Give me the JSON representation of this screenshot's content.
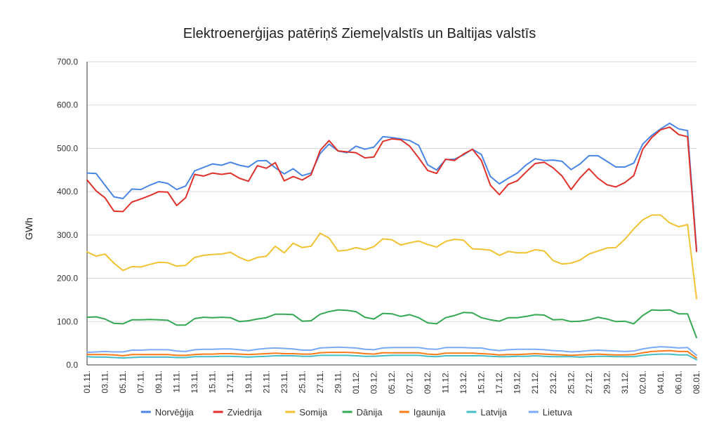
{
  "chart_data": {
    "type": "line",
    "title": "Elektroenerģijas patēriņš Ziemeļvalstīs un Baltijas valstīs",
    "xlabel": "",
    "ylabel": "GWh",
    "ylim": [
      0,
      700
    ],
    "yticks": [
      "0.0",
      "100.0",
      "200.0",
      "300.0",
      "400.0",
      "500.0",
      "600.0",
      "700.0"
    ],
    "grid": true,
    "legend_position": "bottom",
    "x": [
      "01.11.",
      "02.11.",
      "03.11.",
      "04.11.",
      "05.11.",
      "06.11.",
      "07.11.",
      "08.11.",
      "09.11.",
      "10.11.",
      "11.11.",
      "12.11.",
      "13.11.",
      "14.11.",
      "15.11.",
      "16.11.",
      "17.11.",
      "18.11.",
      "19.11.",
      "20.11.",
      "21.11.",
      "22.11.",
      "23.11.",
      "24.11.",
      "25.11.",
      "26.11.",
      "27.11.",
      "28.11.",
      "29.11.",
      "30.11.",
      "01.12.",
      "02.12.",
      "03.12.",
      "04.12.",
      "05.12.",
      "06.12.",
      "07.12.",
      "08.12.",
      "09.12.",
      "10.12.",
      "11.12.",
      "12.12.",
      "13.12.",
      "14.12.",
      "15.12.",
      "16.12.",
      "17.12.",
      "18.12.",
      "19.12.",
      "20.12.",
      "21.12.",
      "22.12.",
      "23.12.",
      "24.12.",
      "25.12.",
      "26.12.",
      "27.12.",
      "28.12.",
      "29.12.",
      "30.12.",
      "31.12.",
      "01.01.",
      "02.01.",
      "03.01.",
      "04.01.",
      "05.01.",
      "06.01.",
      "07.01.",
      "08.01."
    ],
    "x_tick_labels_shown": [
      "01.11.",
      "03.11.",
      "05.11.",
      "07.11.",
      "09.11.",
      "11.11.",
      "13.11.",
      "15.11.",
      "17.11.",
      "19.11.",
      "21.11.",
      "23.11.",
      "25.11.",
      "27.11.",
      "29.11.",
      "01.12.",
      "03.12.",
      "05.12.",
      "07.12.",
      "09.12.",
      "11.12.",
      "13.12.",
      "15.12.",
      "17.12.",
      "19.12.",
      "21.12.",
      "23.12.",
      "25.12.",
      "27.12.",
      "29.12.",
      "31.12.",
      "02.01.",
      "04.01.",
      "06.01.",
      "08.01."
    ],
    "series": [
      {
        "name": "Norvēģija",
        "color": "#4a86e8",
        "values": [
          443,
          442,
          415,
          388,
          384,
          406,
          405,
          415,
          423,
          419,
          405,
          413,
          448,
          456,
          464,
          461,
          468,
          461,
          457,
          471,
          472,
          455,
          441,
          453,
          437,
          443,
          488,
          510,
          494,
          490,
          505,
          498,
          503,
          527,
          525,
          522,
          518,
          507,
          462,
          450,
          474,
          475,
          485,
          498,
          486,
          435,
          418,
          431,
          443,
          462,
          476,
          472,
          473,
          470,
          451,
          464,
          483,
          483,
          470,
          457,
          457,
          466,
          510,
          530,
          545,
          558,
          545,
          541,
          268
        ]
      },
      {
        "name": "Zviedrija",
        "color": "#e0302a",
        "values": [
          427,
          402,
          386,
          355,
          354,
          376,
          383,
          391,
          400,
          399,
          368,
          386,
          440,
          436,
          443,
          440,
          443,
          431,
          424,
          460,
          454,
          467,
          425,
          435,
          427,
          439,
          495,
          518,
          494,
          492,
          490,
          478,
          480,
          516,
          522,
          520,
          505,
          478,
          449,
          442,
          475,
          472,
          487,
          498,
          472,
          415,
          393,
          417,
          425,
          446,
          465,
          468,
          455,
          436,
          405,
          432,
          453,
          431,
          416,
          411,
          421,
          437,
          498,
          525,
          543,
          549,
          532,
          527,
          262
        ]
      },
      {
        "name": "Somija",
        "color": "#f1c232",
        "values": [
          261,
          251,
          256,
          235,
          218,
          227,
          226,
          232,
          237,
          236,
          228,
          230,
          248,
          253,
          255,
          256,
          260,
          248,
          240,
          248,
          251,
          274,
          259,
          281,
          271,
          274,
          304,
          293,
          263,
          265,
          271,
          266,
          273,
          291,
          289,
          277,
          282,
          286,
          278,
          272,
          285,
          290,
          288,
          268,
          267,
          265,
          253,
          262,
          259,
          259,
          266,
          263,
          241,
          233,
          235,
          242,
          256,
          263,
          270,
          271,
          290,
          314,
          335,
          346,
          346,
          328,
          319,
          324,
          153
        ]
      },
      {
        "name": "Dānija",
        "color": "#34a853",
        "values": [
          110,
          111,
          106,
          96,
          95,
          104,
          104,
          105,
          104,
          103,
          92,
          92,
          107,
          110,
          109,
          110,
          109,
          100,
          102,
          106,
          109,
          117,
          117,
          116,
          101,
          102,
          117,
          123,
          127,
          126,
          123,
          110,
          106,
          119,
          118,
          112,
          116,
          109,
          97,
          95,
          109,
          114,
          121,
          120,
          109,
          104,
          101,
          109,
          109,
          112,
          116,
          115,
          104,
          105,
          100,
          101,
          104,
          110,
          106,
          100,
          101,
          95,
          114,
          127,
          126,
          127,
          118,
          118,
          63
        ]
      },
      {
        "name": "Igaunija",
        "color": "#fa7b17",
        "values": [
          24,
          24,
          24,
          23,
          21,
          24,
          24,
          24,
          24,
          24,
          22,
          22,
          24,
          25,
          25,
          26,
          26,
          25,
          24,
          25,
          26,
          27,
          26,
          26,
          25,
          25,
          28,
          29,
          29,
          29,
          28,
          26,
          25,
          28,
          28,
          28,
          28,
          28,
          25,
          24,
          27,
          27,
          27,
          27,
          26,
          25,
          23,
          24,
          24,
          25,
          26,
          25,
          24,
          23,
          22,
          23,
          24,
          25,
          24,
          23,
          23,
          24,
          28,
          31,
          32,
          33,
          31,
          31,
          16
        ]
      },
      {
        "name": "Latvija",
        "color": "#46bdc6",
        "values": [
          19,
          18,
          18,
          17,
          16,
          17,
          18,
          18,
          18,
          18,
          17,
          17,
          19,
          19,
          19,
          20,
          20,
          19,
          18,
          19,
          20,
          21,
          21,
          21,
          20,
          20,
          22,
          22,
          22,
          22,
          21,
          20,
          20,
          21,
          22,
          22,
          22,
          22,
          20,
          19,
          21,
          21,
          21,
          21,
          21,
          20,
          19,
          19,
          20,
          20,
          21,
          20,
          19,
          19,
          19,
          18,
          19,
          20,
          20,
          19,
          19,
          19,
          22,
          24,
          25,
          25,
          23,
          23,
          12
        ]
      },
      {
        "name": "Lietuva",
        "color": "#7baaf7",
        "values": [
          29,
          30,
          31,
          30,
          30,
          34,
          34,
          35,
          35,
          35,
          32,
          31,
          35,
          36,
          36,
          37,
          37,
          35,
          33,
          36,
          38,
          39,
          38,
          37,
          34,
          34,
          39,
          40,
          41,
          40,
          39,
          36,
          35,
          39,
          40,
          40,
          40,
          40,
          37,
          36,
          40,
          40,
          40,
          39,
          39,
          35,
          33,
          35,
          36,
          36,
          36,
          35,
          33,
          32,
          30,
          31,
          33,
          34,
          33,
          32,
          31,
          32,
          37,
          40,
          42,
          41,
          39,
          40,
          22
        ]
      }
    ]
  }
}
